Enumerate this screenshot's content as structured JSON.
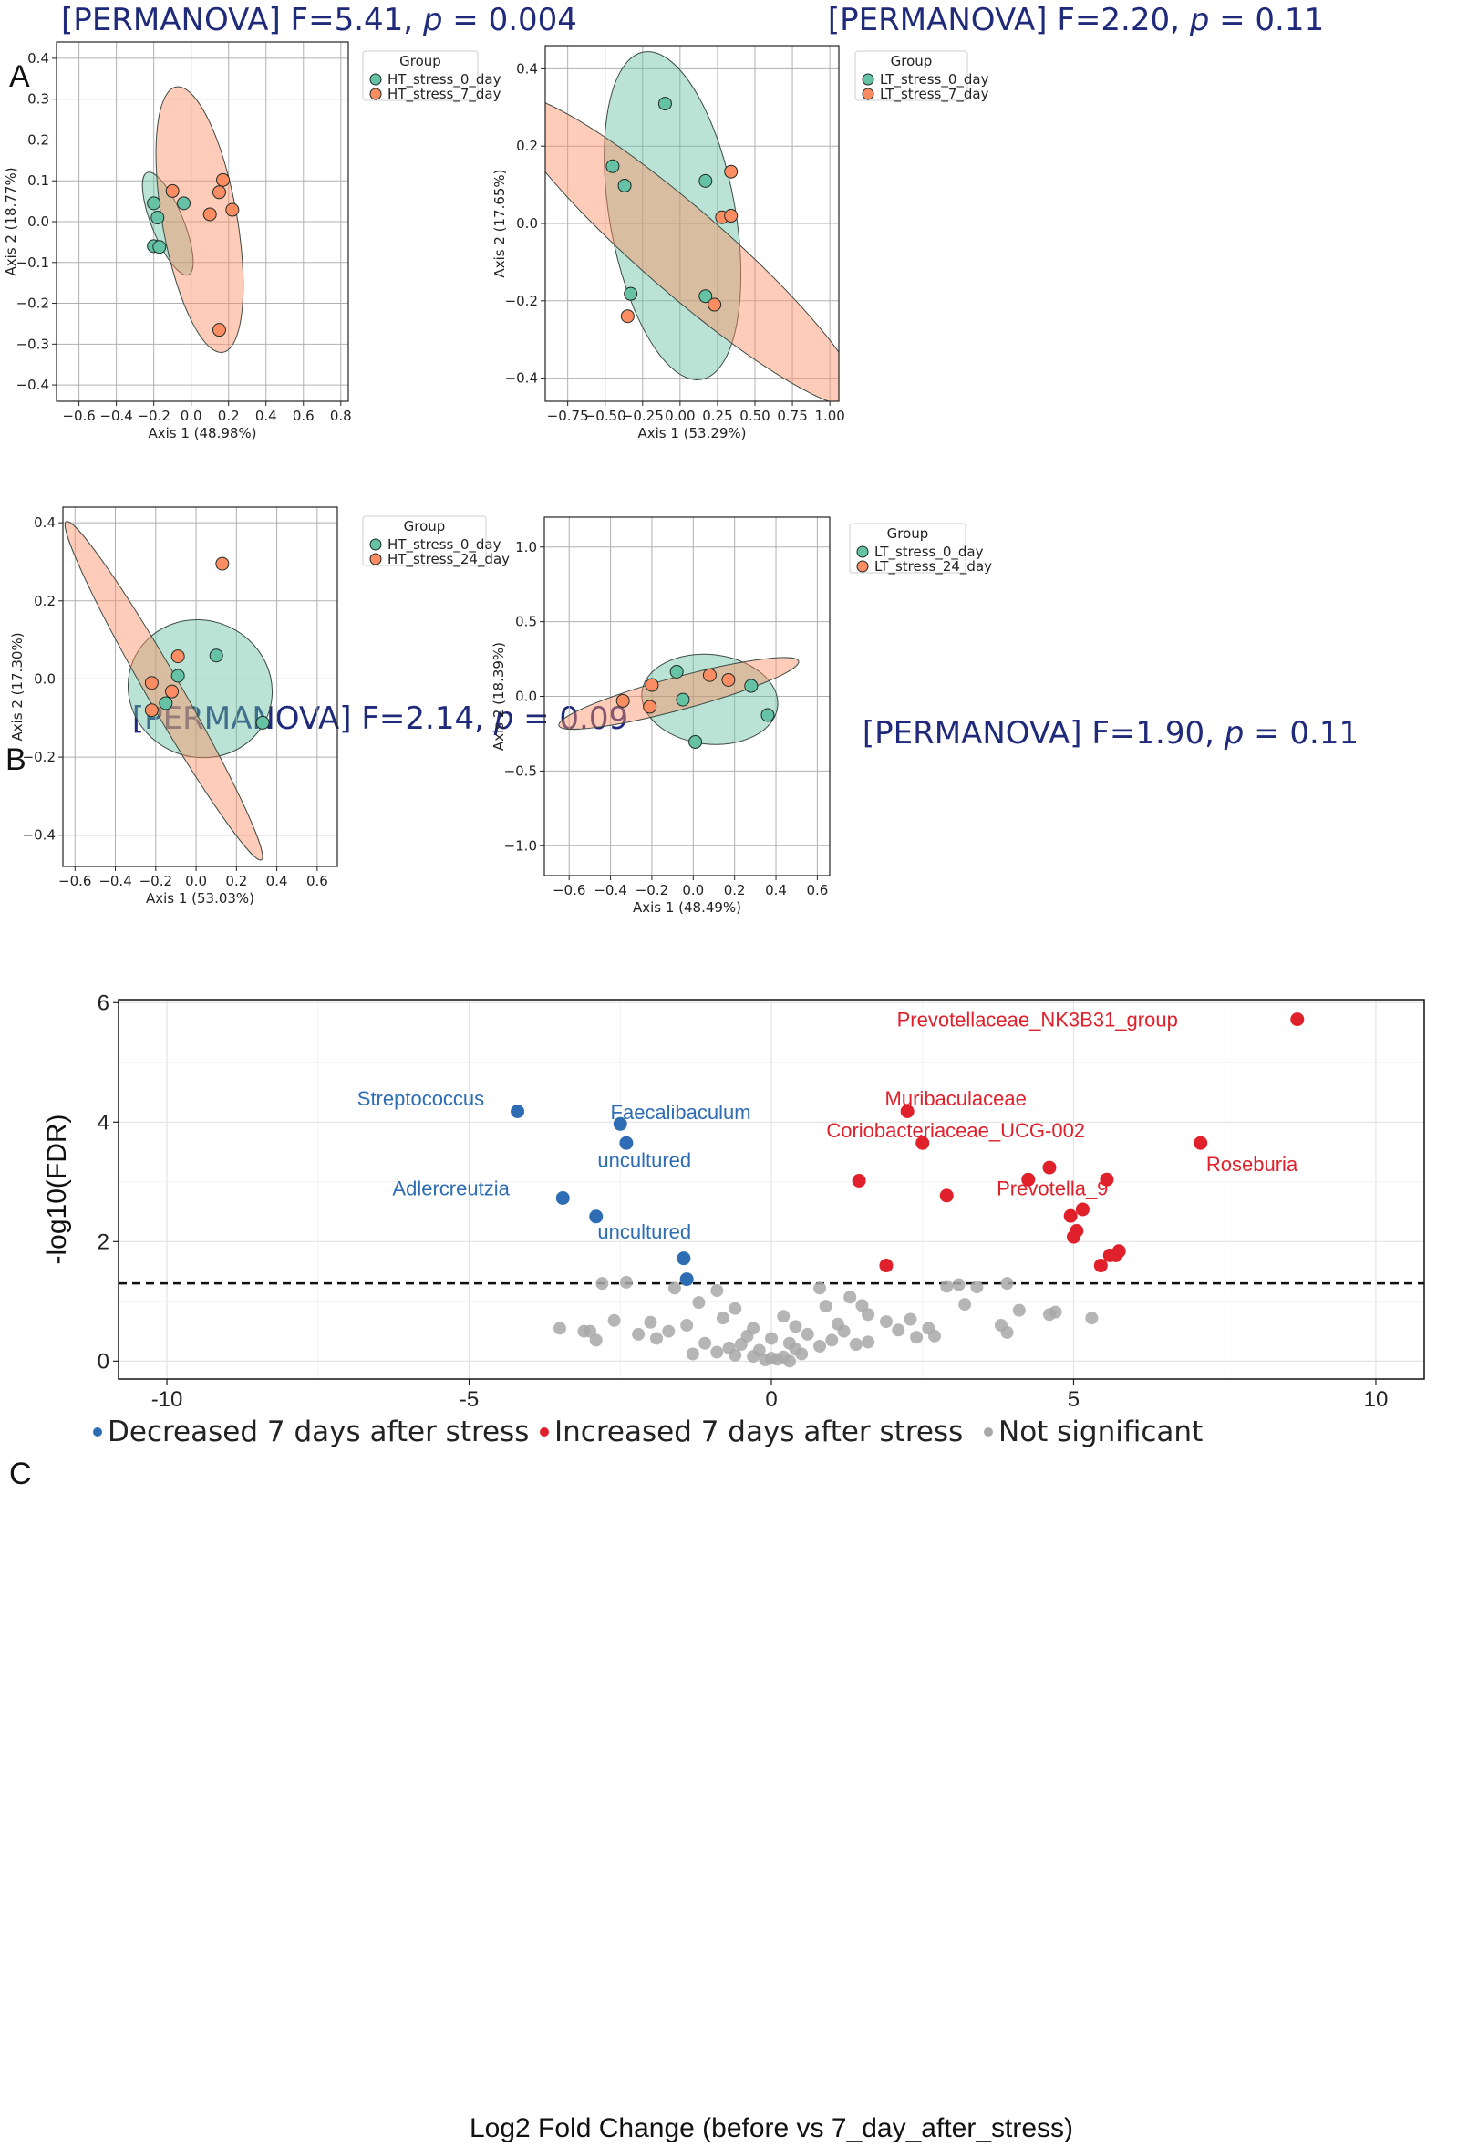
{
  "panels": {
    "a": "A",
    "b": "B",
    "c": "C"
  },
  "colors": {
    "green": "#66c2a5",
    "orange": "#fc8d62",
    "green_fill": "#66c2a5",
    "orange_fill": "#fc8d62",
    "decreased": "#2e6db4",
    "increased": "#e0202a",
    "ns": "#a8a8a8",
    "title": "#1f2a7a"
  },
  "chart_data": [
    {
      "type": "scatter",
      "id": "pcoa1",
      "title_prefix": "[PERMANOVA] F=5.41, ",
      "title_p": "p",
      "title_suffix": " = 0.004",
      "xlabel": "Axis 1 (48.98%)",
      "ylabel": "Axis 2 (18.77%)",
      "xlim": [
        -0.72,
        0.84
      ],
      "ylim": [
        -0.44,
        0.44
      ],
      "xticks": [
        -0.6,
        -0.4,
        -0.2,
        0.0,
        0.2,
        0.4,
        0.6,
        0.8
      ],
      "xtick_labels": [
        "−0.6",
        "−0.4",
        "−0.2",
        "0.0",
        "0.2",
        "0.4",
        "0.6",
        "0.8"
      ],
      "yticks": [
        -0.4,
        -0.3,
        -0.2,
        -0.1,
        0.0,
        0.1,
        0.2,
        0.3,
        0.4
      ],
      "ytick_labels": [
        "−0.4",
        "−0.3",
        "−0.2",
        "−0.1",
        "0.0",
        "0.1",
        "0.2",
        "0.3",
        "0.4"
      ],
      "legend": {
        "title": "Group",
        "entries": [
          "HT_stress_0_day",
          "HT_stress_7_day"
        ]
      },
      "series": [
        {
          "name": "HT_stress_0_day",
          "color": "green",
          "x": [
            -0.2,
            -0.18,
            -0.2,
            -0.17,
            -0.04
          ],
          "y": [
            0.045,
            0.01,
            -0.06,
            -0.062,
            0.045
          ],
          "ellipse": {
            "cx": -0.125,
            "cy": -0.005,
            "rx": 0.085,
            "ry": 0.135,
            "angle": 22
          }
        },
        {
          "name": "HT_stress_7_day",
          "color": "orange",
          "x": [
            -0.1,
            0.15,
            0.17,
            0.1,
            0.22,
            0.15
          ],
          "y": [
            0.075,
            0.072,
            0.102,
            0.018,
            0.029,
            -0.265
          ],
          "ellipse": {
            "cx": 0.045,
            "cy": 0.005,
            "rx": 0.2,
            "ry": 0.33,
            "angle": 10
          }
        }
      ]
    },
    {
      "type": "scatter",
      "id": "pcoa2",
      "title_prefix": "[PERMANOVA] F=2.20, ",
      "title_p": "p",
      "title_suffix": " = 0.11",
      "xlabel": "Axis 1 (53.29%)",
      "ylabel": "Axis 2 (17.65%)",
      "xlim": [
        -0.9,
        1.06
      ],
      "ylim": [
        -0.46,
        0.46
      ],
      "xticks": [
        -0.75,
        -0.5,
        -0.25,
        0.0,
        0.25,
        0.5,
        0.75,
        1.0
      ],
      "xtick_labels": [
        "−0.75",
        "−0.50",
        "−0.25",
        "0.00",
        "0.25",
        "0.50",
        "0.75",
        "1.00"
      ],
      "yticks": [
        -0.4,
        -0.2,
        0.0,
        0.2,
        0.4
      ],
      "ytick_labels": [
        "−0.4",
        "−0.2",
        "0.0",
        "0.2",
        "0.4"
      ],
      "legend": {
        "title": "Group",
        "entries": [
          "LT_stress_0_day",
          "LT_stress_7_day"
        ]
      },
      "series": [
        {
          "name": "LT_stress_0_day",
          "color": "green",
          "x": [
            -0.45,
            -0.37,
            -0.1,
            -0.33,
            0.17,
            0.17
          ],
          "y": [
            0.148,
            0.098,
            0.31,
            -0.182,
            -0.188,
            0.11
          ],
          "ellipse": {
            "cx": -0.05,
            "cy": 0.02,
            "rx": 0.42,
            "ry": 0.43,
            "angle": 10
          }
        },
        {
          "name": "LT_stress_7_day",
          "color": "orange",
          "x": [
            0.34,
            0.28,
            0.34,
            0.23,
            -0.35
          ],
          "y": [
            0.134,
            0.016,
            0.02,
            -0.21,
            -0.24
          ],
          "ellipse": {
            "cx": 0.02,
            "cy": -0.07,
            "rx": 0.28,
            "ry": 0.6,
            "angle": 49
          }
        }
      ]
    },
    {
      "type": "scatter",
      "id": "pcoa3",
      "title_prefix": "[PERMANOVA] F=2.14, ",
      "title_p": "p",
      "title_suffix": " = 0.09",
      "xlabel": "Axis 1 (53.03%)",
      "ylabel": "Axis 2 (17.30%)",
      "xlim": [
        -0.66,
        0.7
      ],
      "ylim": [
        -0.48,
        0.44
      ],
      "xticks": [
        -0.6,
        -0.4,
        -0.2,
        0.0,
        0.2,
        0.4,
        0.6
      ],
      "xtick_labels": [
        "−0.6",
        "−0.4",
        "−0.2",
        "0.0",
        "0.2",
        "0.4",
        "0.6"
      ],
      "yticks": [
        -0.4,
        -0.2,
        0.0,
        0.2,
        0.4
      ],
      "ytick_labels": [
        "−0.4",
        "−0.2",
        "0.0",
        "0.2",
        "0.4"
      ],
      "legend": {
        "title": "Group",
        "entries": [
          "HT_stress_0_day",
          "HT_stress_24_day"
        ]
      },
      "series": [
        {
          "name": "HT_stress_0_day",
          "color": "green",
          "x": [
            0.1,
            0.33,
            -0.09,
            -0.15
          ],
          "y": [
            0.06,
            -0.112,
            0.008,
            -0.062
          ],
          "ellipse": {
            "cx": 0.02,
            "cy": -0.025,
            "rx": 0.36,
            "ry": 0.175,
            "angle": -22
          }
        },
        {
          "name": "HT_stress_24_day",
          "color": "orange",
          "x": [
            0.13,
            -0.09,
            -0.22,
            -0.12,
            -0.22
          ],
          "y": [
            0.295,
            0.058,
            -0.01,
            -0.032,
            -0.08
          ],
          "ellipse": {
            "cx": -0.16,
            "cy": -0.03,
            "rx": 0.085,
            "ry": 0.5,
            "angle": 30
          }
        }
      ]
    },
    {
      "type": "scatter",
      "id": "pcoa4",
      "title_prefix": "[PERMANOVA] F=1.90, ",
      "title_p": "p",
      "title_suffix": " = 0.11",
      "xlabel": "Axis 1 (48.49%)",
      "ylabel": "Axis 2 (18.39%)",
      "xlim": [
        -0.72,
        0.66
      ],
      "ylim": [
        -1.2,
        1.2
      ],
      "xticks": [
        -0.6,
        -0.4,
        -0.2,
        0.0,
        0.2,
        0.4,
        0.6
      ],
      "xtick_labels": [
        "−0.6",
        "−0.4",
        "−0.2",
        "0.0",
        "0.2",
        "0.4",
        "0.6"
      ],
      "yticks": [
        -1.0,
        -0.5,
        0.0,
        0.5,
        1.0
      ],
      "ytick_labels": [
        "−1.0",
        "−0.5",
        "0.0",
        "0.5",
        "1.0"
      ],
      "legend": {
        "title": "Group",
        "entries": [
          "LT_stress_0_day",
          "LT_stress_24_day"
        ]
      },
      "series": [
        {
          "name": "LT_stress_0_day",
          "color": "green",
          "x": [
            -0.08,
            -0.05,
            0.28,
            0.36,
            0.01
          ],
          "y": [
            0.165,
            -0.022,
            0.07,
            -0.125,
            -0.305
          ],
          "ellipse": {
            "cx": 0.08,
            "cy": -0.02,
            "rx": 0.33,
            "ry": 0.3,
            "angle": -6
          }
        },
        {
          "name": "LT_stress_24_day",
          "color": "orange",
          "x": [
            0.08,
            0.17,
            -0.2,
            -0.34,
            -0.21
          ],
          "y": [
            0.142,
            0.11,
            0.076,
            -0.03,
            -0.07
          ],
          "ellipse": {
            "cx": -0.07,
            "cy": 0.02,
            "rx": 0.6,
            "ry": 0.11,
            "angle": 15
          }
        }
      ]
    },
    {
      "type": "scatter",
      "id": "volcano",
      "xlabel": "Log2 Fold Change (before vs 7_day_after_stress)",
      "ylabel": "-log10(FDR)",
      "xlim": [
        -10.8,
        10.8
      ],
      "ylim": [
        -0.3,
        6.05
      ],
      "xticks": [
        -10,
        -5,
        0,
        5,
        10
      ],
      "xtick_labels": [
        "-10",
        "-5",
        "0",
        "5",
        "10"
      ],
      "yticks": [
        0,
        2,
        4,
        6
      ],
      "ytick_labels": [
        "0",
        "2",
        "4",
        "6"
      ],
      "threshold": 1.3,
      "legend": [
        "Decreased 7 days after stress",
        "Increased 7 days after stress",
        "Not significant"
      ],
      "decreased": {
        "x": [
          -4.2,
          -2.5,
          -2.4,
          -3.45,
          -2.9,
          -1.45,
          -1.4
        ],
        "y": [
          4.18,
          3.97,
          3.65,
          2.73,
          2.42,
          1.72,
          1.37
        ]
      },
      "increased": {
        "x": [
          8.7,
          2.25,
          2.5,
          7.1,
          4.6,
          5.55,
          4.25,
          1.45,
          2.9,
          5.15,
          4.95,
          5.05,
          5.0,
          5.75,
          5.6,
          5.7,
          5.45,
          1.9
        ],
        "y": [
          5.72,
          4.18,
          3.65,
          3.65,
          3.24,
          3.04,
          3.04,
          3.02,
          2.77,
          2.54,
          2.43,
          2.18,
          2.08,
          1.84,
          1.77,
          1.77,
          1.6,
          1.6
        ]
      },
      "not_significant": {
        "x": [
          -2.8,
          -2.4,
          -1.6,
          -0.9,
          0.8,
          1.3,
          1.5,
          2.9,
          3.1,
          3.4,
          3.9,
          4.7,
          -1.2,
          -0.6,
          0.2,
          0.9,
          1.6,
          2.3,
          3.2,
          4.1,
          4.6,
          5.3,
          -2.6,
          -2.0,
          -1.4,
          -0.8,
          -0.3,
          0.4,
          1.1,
          1.9,
          2.6,
          3.8,
          -3.5,
          -3.0,
          -2.2,
          -1.7,
          -0.4,
          0.0,
          0.6,
          1.2,
          2.1,
          2.7,
          3.9,
          -2.9,
          -1.9,
          -1.1,
          -0.5,
          0.3,
          1.0,
          1.6,
          2.4,
          -3.1,
          -0.7,
          -0.2,
          0.4,
          0.8,
          1.4,
          -1.3,
          -0.9,
          -0.6,
          -0.3,
          0.0,
          0.2,
          0.5,
          -0.1,
          0.1,
          0.3
        ],
        "y": [
          1.3,
          1.32,
          1.22,
          1.18,
          1.22,
          1.07,
          0.93,
          1.25,
          1.28,
          1.24,
          1.3,
          0.82,
          0.98,
          0.88,
          0.75,
          0.92,
          0.78,
          0.7,
          0.95,
          0.85,
          0.78,
          0.72,
          0.68,
          0.65,
          0.6,
          0.72,
          0.55,
          0.58,
          0.62,
          0.66,
          0.55,
          0.6,
          0.55,
          0.5,
          0.45,
          0.5,
          0.42,
          0.38,
          0.45,
          0.5,
          0.52,
          0.42,
          0.48,
          0.35,
          0.38,
          0.3,
          0.28,
          0.3,
          0.35,
          0.32,
          0.4,
          0.5,
          0.22,
          0.18,
          0.2,
          0.25,
          0.28,
          0.12,
          0.15,
          0.1,
          0.08,
          0.05,
          0.07,
          0.12,
          0.02,
          0.03,
          0.0
        ]
      },
      "labels": [
        {
          "text": "Prevotellaceae_NK3B31_group",
          "cls": "increased",
          "x": 4.4,
          "y": 5.72,
          "anchor": "middle"
        },
        {
          "text": "Muribaculaceae",
          "cls": "increased",
          "x": 3.05,
          "y": 4.4,
          "anchor": "middle"
        },
        {
          "text": "Coriobacteriaceae_UCG-002",
          "cls": "increased",
          "x": 3.05,
          "y": 3.87,
          "anchor": "middle"
        },
        {
          "text": "Roseburia",
          "cls": "increased",
          "x": 7.95,
          "y": 3.3,
          "anchor": "middle"
        },
        {
          "text": "Prevotella_9",
          "cls": "increased",
          "x": 4.65,
          "y": 2.9,
          "anchor": "middle"
        },
        {
          "text": "Streptococcus",
          "cls": "decreased",
          "x": -5.8,
          "y": 4.4,
          "anchor": "middle"
        },
        {
          "text": "Faecalibaculum",
          "cls": "decreased",
          "x": -1.5,
          "y": 4.17,
          "anchor": "middle"
        },
        {
          "text": "uncultured",
          "cls": "decreased",
          "x": -2.1,
          "y": 3.37,
          "anchor": "middle"
        },
        {
          "text": "Adlercreutzia",
          "cls": "decreased",
          "x": -5.3,
          "y": 2.9,
          "anchor": "middle"
        },
        {
          "text": "uncultured",
          "cls": "decreased",
          "x": -2.1,
          "y": 2.17,
          "anchor": "middle"
        }
      ]
    }
  ]
}
